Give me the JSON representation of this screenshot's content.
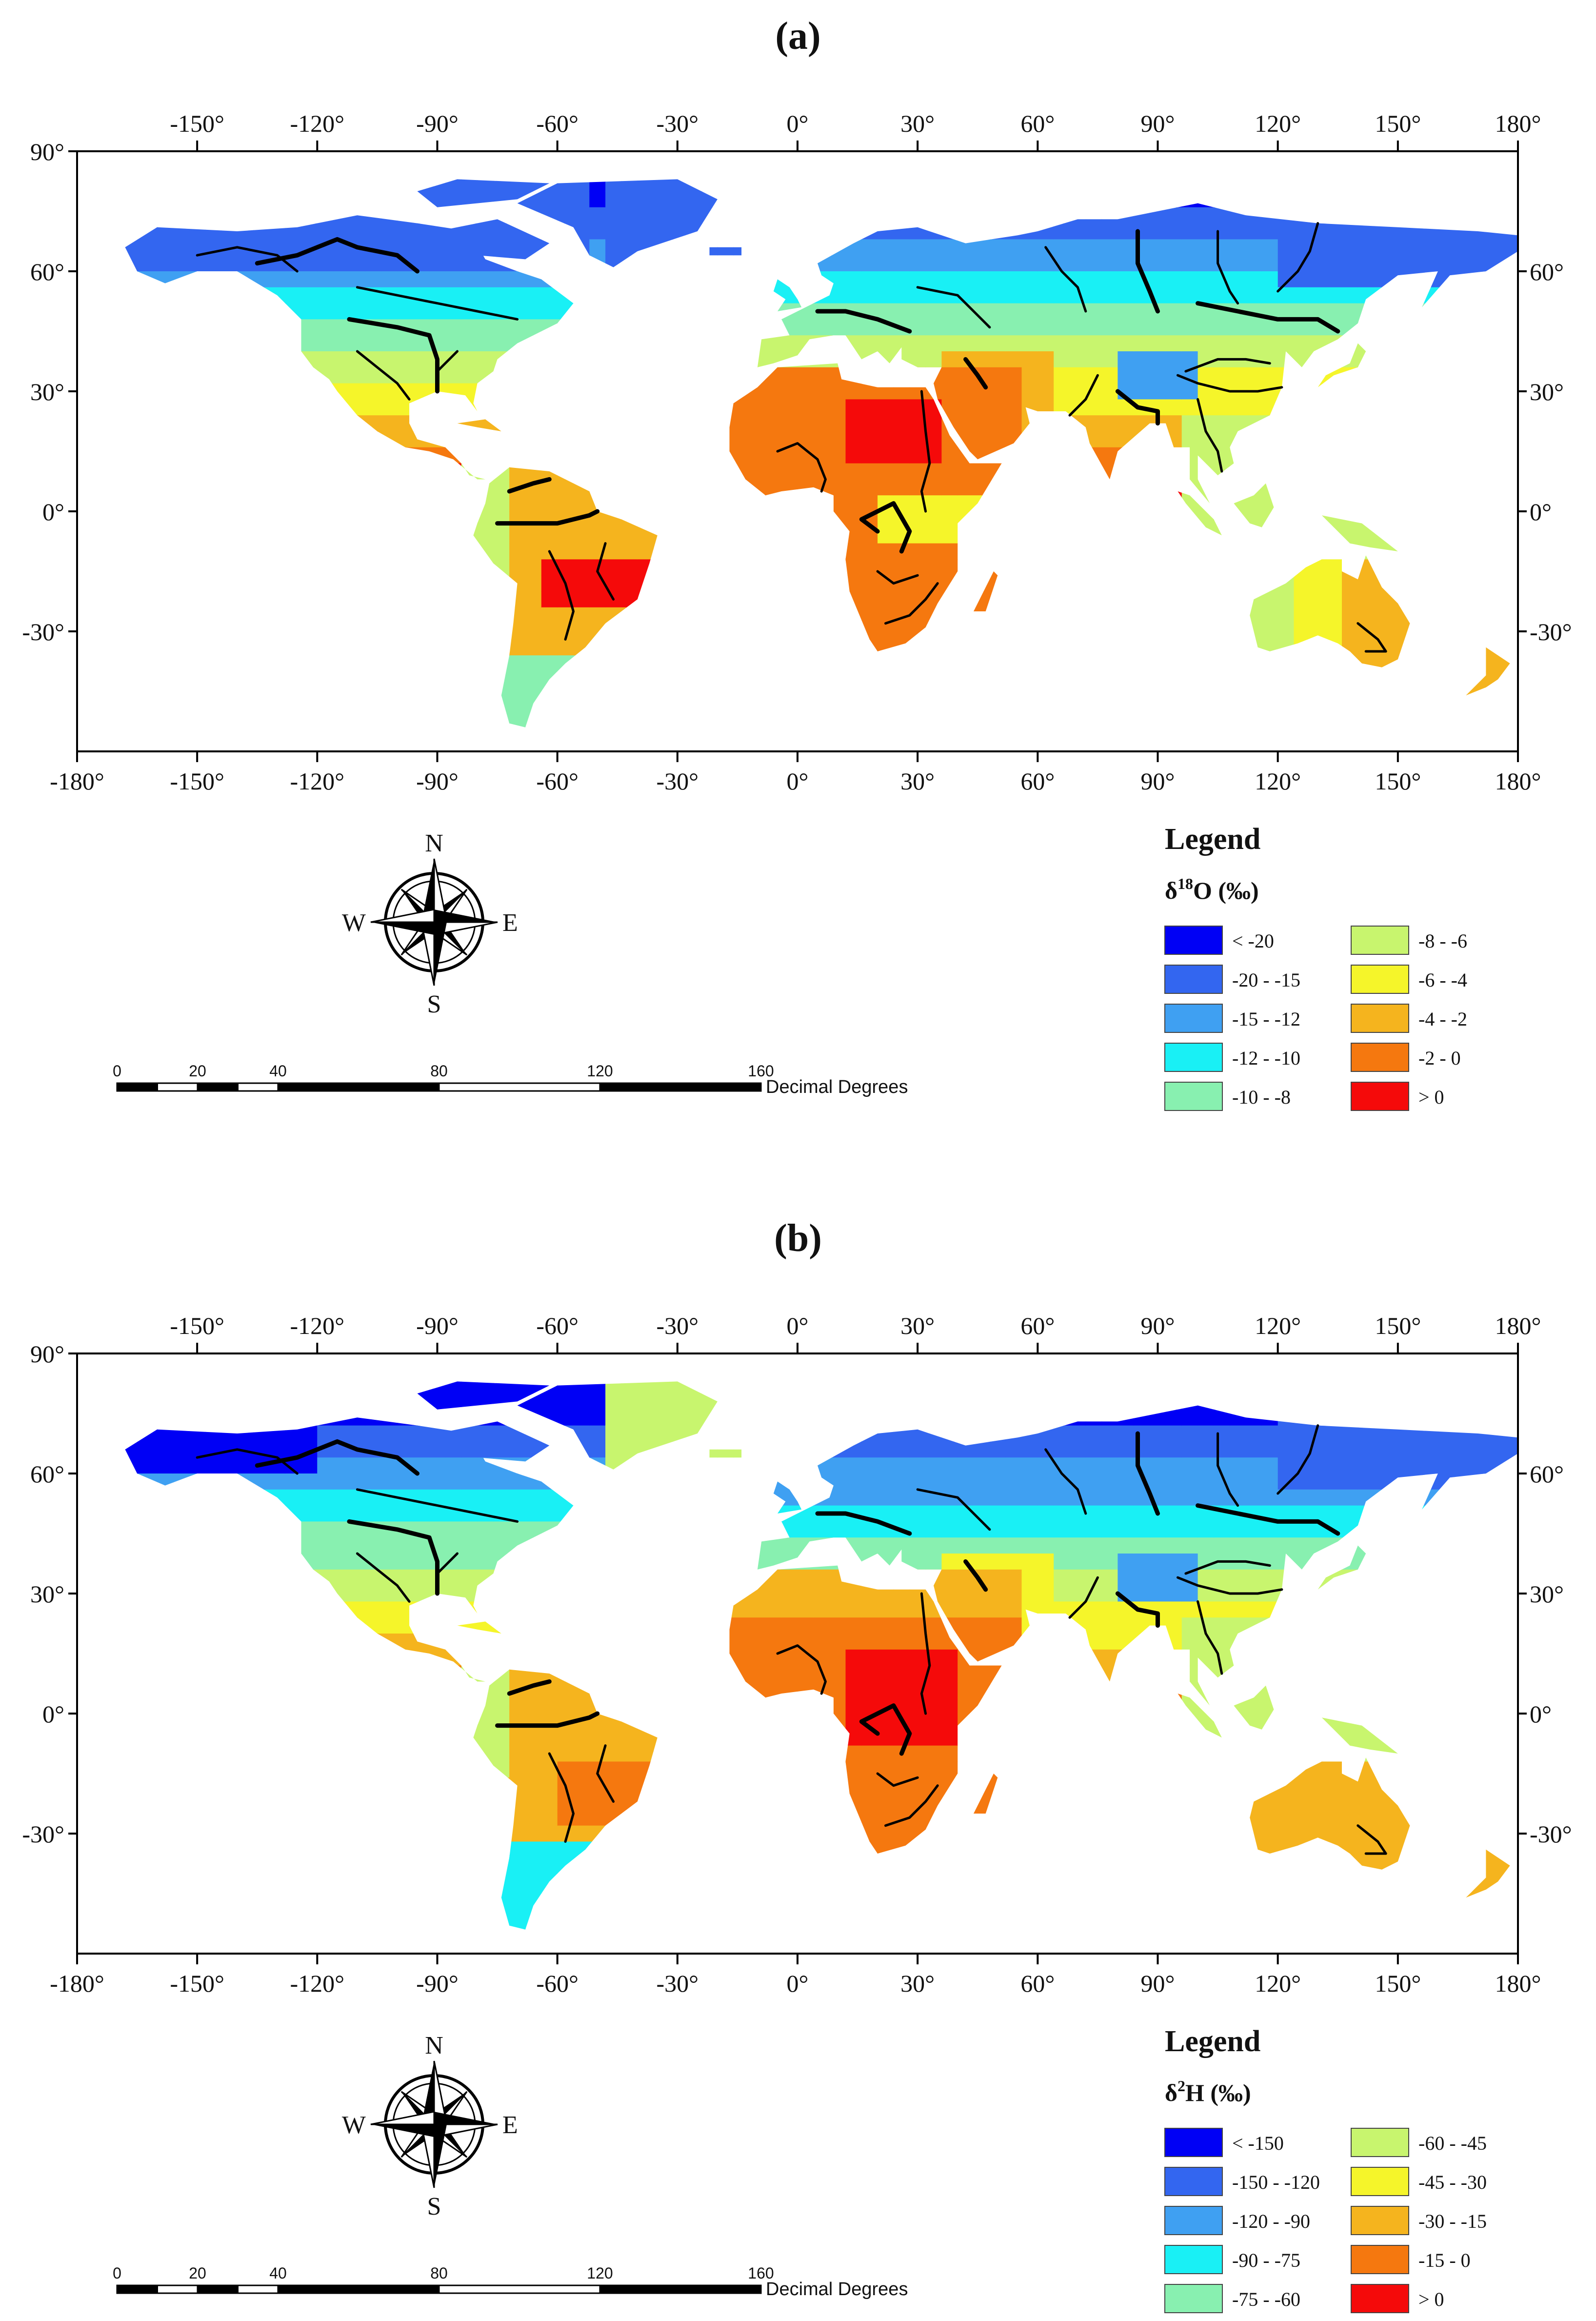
{
  "panels": [
    {
      "id": "a",
      "label": "(a)",
      "legend_title": "Legend",
      "variable_main": "δ",
      "variable_sup": "18",
      "variable_rest": "O (‰)",
      "classes": [
        {
          "label": "< -20",
          "color": "#0000f5"
        },
        {
          "label": "-20 - -15",
          "color": "#3366f0"
        },
        {
          "label": "-15 - -12",
          "color": "#3fa0f2"
        },
        {
          "label": "-12 - -10",
          "color": "#19f0f5"
        },
        {
          "label": "-10 - -8",
          "color": "#88f0b0"
        },
        {
          "label": "-8 - -6",
          "color": "#c8f56e"
        },
        {
          "label": "-6 - -4",
          "color": "#f5f52a"
        },
        {
          "label": "-4 - -2",
          "color": "#f5b41e"
        },
        {
          "label": "-2 - 0",
          "color": "#f5780f"
        },
        {
          "label": "> 0",
          "color": "#f50a0a"
        }
      ]
    },
    {
      "id": "b",
      "label": "(b)",
      "legend_title": "Legend",
      "variable_main": "δ",
      "variable_sup": "2",
      "variable_rest": "H (‰)",
      "classes": [
        {
          "label": "< -150",
          "color": "#0000f5"
        },
        {
          "label": "-150 - -120",
          "color": "#3366f0"
        },
        {
          "label": "-120 - -90",
          "color": "#3fa0f2"
        },
        {
          "label": "-90 - -75",
          "color": "#19f0f5"
        },
        {
          "label": "-75 - -60",
          "color": "#88f0b0"
        },
        {
          "label": "-60 - -45",
          "color": "#c8f56e"
        },
        {
          "label": "-45 - -30",
          "color": "#f5f52a"
        },
        {
          "label": "-30 - -15",
          "color": "#f5b41e"
        },
        {
          "label": "-15 - 0",
          "color": "#f5780f"
        },
        {
          "label": "> 0",
          "color": "#f50a0a"
        }
      ]
    }
  ],
  "axes": {
    "top_lon_labels": [
      "-150°",
      "-120°",
      "-90°",
      "-60°",
      "-30°",
      "0°",
      "30°",
      "60°",
      "90°",
      "120°",
      "150°",
      "180°"
    ],
    "bottom_lon_labels": [
      "-180°",
      "-150°",
      "-120°",
      "-90°",
      "-60°",
      "-30°",
      "0°",
      "30°",
      "60°",
      "90°",
      "120°",
      "150°",
      "180°"
    ],
    "left_lat_labels": [
      "90°",
      "60°",
      "30°",
      "0°",
      "-30°"
    ],
    "right_lat_labels": [
      "60°",
      "30°",
      "0°",
      "-30°"
    ]
  },
  "compass": {
    "n": "N",
    "s": "S",
    "e": "E",
    "w": "W"
  },
  "scalebar": {
    "ticks": [
      "0",
      "20",
      "40",
      "80",
      "120",
      "160"
    ],
    "unit": "Decimal Degrees"
  }
}
